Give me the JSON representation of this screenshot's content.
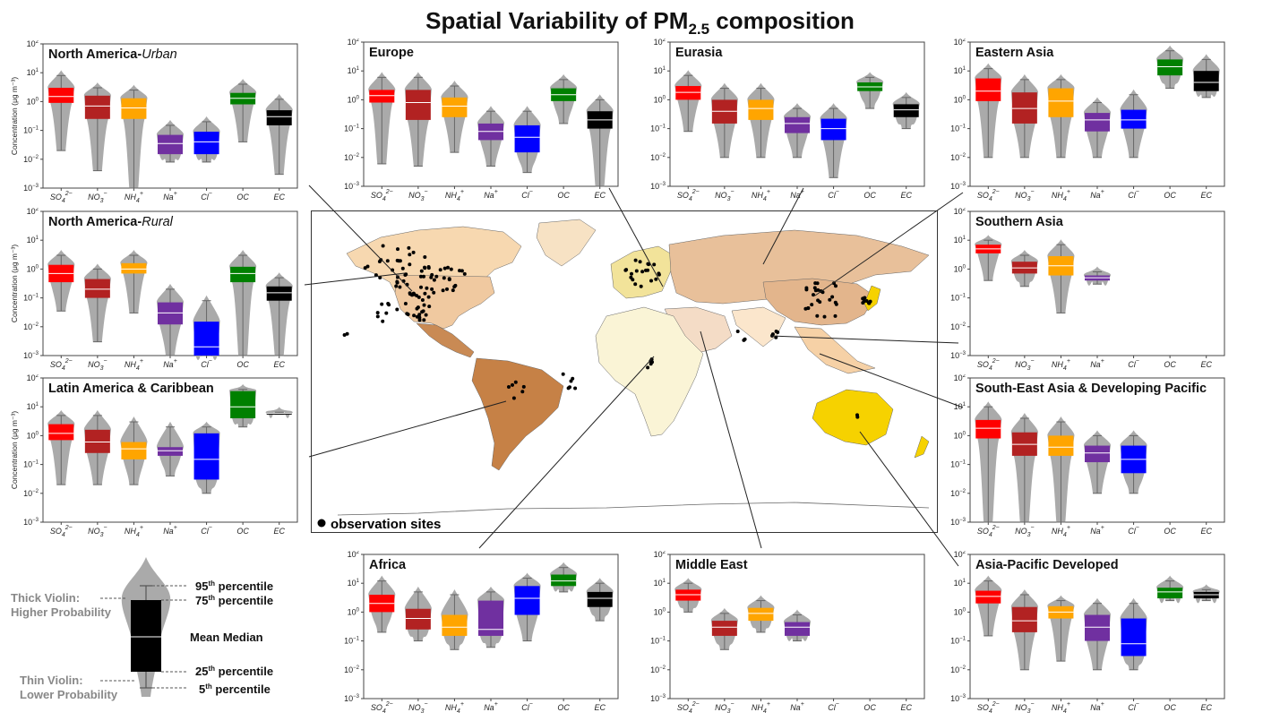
{
  "title": "Spatial Variability of PM",
  "title_sub": "2.5",
  "title_suffix": " composition",
  "map": {
    "legend_label": "observation sites"
  },
  "key": {
    "thick_violin": "Thick Violin:",
    "higher_probability": "Higher Probability",
    "thin_violin": "Thin Violin:",
    "lower_probability": "Lower Probability",
    "p95": "95",
    "p75": "75",
    "p25": "25",
    "p5": "5",
    "th": "th",
    "percentile": "percentile",
    "mean_median": "Mean Median"
  },
  "colors": {
    "SO4": "#ff0000",
    "NO3": "#b22222",
    "NH4": "#ffa500",
    "Na": "#7030a0",
    "Cl": "#0000ff",
    "OC": "#008000",
    "EC": "#000000",
    "violin": "#aaaaaa"
  },
  "chart_data": [
    {
      "type": "box-violin",
      "title": "North America-",
      "title_italic": "Urban",
      "ylabel": "Concentration (μg m⁻³)",
      "yscale": "log",
      "ylim": [
        0.001,
        100
      ],
      "categories": [
        "SO4",
        "NO3",
        "NH4",
        "Na",
        "Cl",
        "OC",
        "EC"
      ],
      "boxes": [
        {
          "p5": 0.02,
          "q1": 0.9,
          "median": 1.5,
          "q3": 3.0,
          "p95": 8
        },
        {
          "p5": 0.004,
          "q1": 0.25,
          "median": 0.7,
          "q3": 1.6,
          "p95": 3
        },
        {
          "p5": 0.001,
          "q1": 0.25,
          "median": 0.6,
          "q3": 1.3,
          "p95": 2.5
        },
        {
          "p5": 0.008,
          "q1": 0.015,
          "median": 0.035,
          "q3": 0.07,
          "p95": 0.15
        },
        {
          "p5": 0.008,
          "q1": 0.015,
          "median": 0.04,
          "q3": 0.09,
          "p95": 0.2
        },
        {
          "p5": 0.04,
          "q1": 0.8,
          "median": 1.3,
          "q3": 2.0,
          "p95": 4
        },
        {
          "p5": 0.003,
          "q1": 0.15,
          "median": 0.3,
          "q3": 0.5,
          "p95": 1.2
        }
      ]
    },
    {
      "type": "box-violin",
      "title": "Europe",
      "yscale": "log",
      "ylim": [
        0.001,
        100
      ],
      "categories": [
        "SO4",
        "NO3",
        "NH4",
        "Na",
        "Cl",
        "OC",
        "EC"
      ],
      "boxes": [
        {
          "p5": 0.006,
          "q1": 0.8,
          "median": 1.4,
          "q3": 2.2,
          "p95": 6
        },
        {
          "p5": 0.005,
          "q1": 0.2,
          "median": 0.8,
          "q3": 2.2,
          "p95": 6
        },
        {
          "p5": 0.015,
          "q1": 0.25,
          "median": 0.6,
          "q3": 1.2,
          "p95": 3
        },
        {
          "p5": 0.005,
          "q1": 0.04,
          "median": 0.08,
          "q3": 0.15,
          "p95": 0.4
        },
        {
          "p5": 0.003,
          "q1": 0.015,
          "median": 0.05,
          "q3": 0.13,
          "p95": 0.4
        },
        {
          "p5": 0.15,
          "q1": 0.9,
          "median": 1.5,
          "q3": 2.5,
          "p95": 5
        },
        {
          "p5": 0.001,
          "q1": 0.1,
          "median": 0.2,
          "q3": 0.4,
          "p95": 1
        }
      ]
    },
    {
      "type": "box-violin",
      "title": "Eurasia",
      "yscale": "log",
      "ylim": [
        0.001,
        100
      ],
      "categories": [
        "SO4",
        "NO3",
        "NH4",
        "Na",
        "Cl",
        "OC",
        "EC"
      ],
      "boxes": [
        {
          "p5": 0.08,
          "q1": 1.0,
          "median": 1.8,
          "q3": 3.0,
          "p95": 7
        },
        {
          "p5": 0.01,
          "q1": 0.15,
          "median": 0.4,
          "q3": 1.0,
          "p95": 2.5
        },
        {
          "p5": 0.01,
          "q1": 0.2,
          "median": 0.5,
          "q3": 1.0,
          "p95": 2.5
        },
        {
          "p5": 0.01,
          "q1": 0.07,
          "median": 0.15,
          "q3": 0.25,
          "p95": 0.5
        },
        {
          "p5": 0.002,
          "q1": 0.04,
          "median": 0.1,
          "q3": 0.22,
          "p95": 0.5
        },
        {
          "p5": 0.5,
          "q1": 2.0,
          "median": 2.8,
          "q3": 4.0,
          "p95": 6
        },
        {
          "p5": 0.1,
          "q1": 0.25,
          "median": 0.45,
          "q3": 0.7,
          "p95": 1.2
        }
      ]
    },
    {
      "type": "box-violin",
      "title": "Eastern Asia",
      "yscale": "log",
      "ylim": [
        0.001,
        100
      ],
      "categories": [
        "SO4",
        "NO3",
        "NH4",
        "Na",
        "Cl",
        "OC",
        "EC"
      ],
      "boxes": [
        {
          "p5": 0.01,
          "q1": 0.9,
          "median": 2.0,
          "q3": 5.5,
          "p95": 12
        },
        {
          "p5": 0.01,
          "q1": 0.15,
          "median": 0.5,
          "q3": 1.8,
          "p95": 5
        },
        {
          "p5": 0.01,
          "q1": 0.25,
          "median": 0.9,
          "q3": 2.5,
          "p95": 5
        },
        {
          "p5": 0.01,
          "q1": 0.08,
          "median": 0.2,
          "q3": 0.35,
          "p95": 0.8
        },
        {
          "p5": 0.01,
          "q1": 0.1,
          "median": 0.2,
          "q3": 0.45,
          "p95": 1.5
        },
        {
          "p5": 2.5,
          "q1": 7.0,
          "median": 14,
          "q3": 25,
          "p95": 50
        },
        {
          "p5": 1.2,
          "q1": 2.0,
          "median": 4.0,
          "q3": 10,
          "p95": 25
        }
      ]
    },
    {
      "type": "box-violin",
      "title": "North America-",
      "title_italic": "Rural",
      "ylabel": "Concentration (μg m⁻³)",
      "yscale": "log",
      "ylim": [
        0.001,
        100
      ],
      "categories": [
        "SO4",
        "NO3",
        "NH4",
        "Na",
        "Cl",
        "OC",
        "EC"
      ],
      "boxes": [
        {
          "p5": 0.035,
          "q1": 0.35,
          "median": 0.7,
          "q3": 1.4,
          "p95": 3
        },
        {
          "p5": 0.003,
          "q1": 0.1,
          "median": 0.2,
          "q3": 0.45,
          "p95": 1
        },
        {
          "p5": 0.03,
          "q1": 0.7,
          "median": 1.0,
          "q3": 1.6,
          "p95": 3
        },
        {
          "p5": 0.001,
          "q1": 0.012,
          "median": 0.03,
          "q3": 0.07,
          "p95": 0.2
        },
        {
          "p5": 0.001,
          "q1": 0.001,
          "median": 0.002,
          "q3": 0.015,
          "p95": 0.08
        },
        {
          "p5": 0.001,
          "q1": 0.35,
          "median": 0.7,
          "q3": 1.2,
          "p95": 3
        },
        {
          "p5": 0.001,
          "q1": 0.08,
          "median": 0.15,
          "q3": 0.25,
          "p95": 0.5
        }
      ]
    },
    {
      "type": "box-violin",
      "title": "Southern Asia",
      "yscale": "log",
      "ylim": [
        0.001,
        100
      ],
      "categories": [
        "SO4",
        "NO3",
        "NH4",
        "Na",
        "Cl",
        "OC",
        "EC"
      ],
      "boxes": [
        {
          "p5": 0.4,
          "q1": 3.5,
          "median": 5.0,
          "q3": 7.0,
          "p95": 10
        },
        {
          "p5": 0.25,
          "q1": 0.7,
          "median": 1.1,
          "q3": 1.8,
          "p95": 3
        },
        {
          "p5": 0.03,
          "q1": 0.6,
          "median": 1.3,
          "q3": 2.8,
          "p95": 7
        },
        {
          "p5": 0.3,
          "q1": 0.4,
          "median": 0.5,
          "q3": 0.6,
          "p95": 0.8
        },
        null,
        null,
        null
      ]
    },
    {
      "type": "box-violin",
      "title": "Latin America & Caribbean",
      "ylabel": "Concentration (μg m⁻³)",
      "yscale": "log",
      "ylim": [
        0.001,
        100
      ],
      "categories": [
        "SO4",
        "NO3",
        "NH4",
        "Na",
        "Cl",
        "OC",
        "EC"
      ],
      "boxes": [
        {
          "p5": 0.02,
          "q1": 0.7,
          "median": 1.2,
          "q3": 2.5,
          "p95": 5
        },
        {
          "p5": 0.02,
          "q1": 0.25,
          "median": 0.6,
          "q3": 1.6,
          "p95": 5
        },
        {
          "p5": 0.02,
          "q1": 0.15,
          "median": 0.35,
          "q3": 0.6,
          "p95": 3
        },
        {
          "p5": 0.04,
          "q1": 0.2,
          "median": 0.3,
          "q3": 0.4,
          "p95": 2
        },
        {
          "p5": 0.01,
          "q1": 0.03,
          "median": 0.15,
          "q3": 1.2,
          "p95": 2
        },
        {
          "p5": 2.0,
          "q1": 4.0,
          "median": 10,
          "q3": 35,
          "p95": 40
        },
        {
          "p5": 5.5,
          "q1": 5.8,
          "median": 6.0,
          "q3": 6.2,
          "p95": 6.5
        }
      ]
    },
    {
      "type": "box-violin",
      "title": "South-East Asia & Developing Pacific",
      "yscale": "log",
      "ylim": [
        0.001,
        100
      ],
      "categories": [
        "SO4",
        "NO3",
        "NH4",
        "Na",
        "Cl",
        "OC",
        "EC"
      ],
      "boxes": [
        {
          "p5": 0.001,
          "q1": 0.8,
          "median": 1.8,
          "q3": 3.5,
          "p95": 10
        },
        {
          "p5": 0.001,
          "q1": 0.2,
          "median": 0.5,
          "q3": 1.3,
          "p95": 4
        },
        {
          "p5": 0.001,
          "q1": 0.2,
          "median": 0.4,
          "q3": 1.0,
          "p95": 3
        },
        {
          "p5": 0.01,
          "q1": 0.12,
          "median": 0.25,
          "q3": 0.45,
          "p95": 1
        },
        {
          "p5": 0.01,
          "q1": 0.05,
          "median": 0.15,
          "q3": 0.45,
          "p95": 1
        },
        null,
        null
      ]
    },
    {
      "type": "box-violin",
      "title": "Africa",
      "yscale": "log",
      "ylim": [
        0.001,
        100
      ],
      "categories": [
        "SO4",
        "NO3",
        "NH4",
        "Na",
        "Cl",
        "OC",
        "EC"
      ],
      "boxes": [
        {
          "p5": 0.2,
          "q1": 1.0,
          "median": 2.0,
          "q3": 4.0,
          "p95": 12
        },
        {
          "p5": 0.1,
          "q1": 0.25,
          "median": 0.6,
          "q3": 1.3,
          "p95": 5
        },
        {
          "p5": 0.05,
          "q1": 0.15,
          "median": 0.3,
          "q3": 0.8,
          "p95": 4
        },
        {
          "p5": 0.06,
          "q1": 0.15,
          "median": 0.25,
          "q3": 2.5,
          "p95": 5
        },
        {
          "p5": 0.1,
          "q1": 0.8,
          "median": 3.0,
          "q3": 8.0,
          "p95": 15
        },
        {
          "p5": 5.0,
          "q1": 8.0,
          "median": 12,
          "q3": 20,
          "p95": 35
        },
        {
          "p5": 0.5,
          "q1": 1.5,
          "median": 3.0,
          "q3": 5.0,
          "p95": 10
        }
      ]
    },
    {
      "type": "box-violin",
      "title": "Middle East",
      "yscale": "log",
      "ylim": [
        0.001,
        100
      ],
      "categories": [
        "SO4",
        "NO3",
        "NH4",
        "Na",
        "Cl",
        "OC",
        "EC"
      ],
      "boxes": [
        {
          "p5": 1.0,
          "q1": 2.5,
          "median": 4.0,
          "q3": 6.0,
          "p95": 10
        },
        {
          "p5": 0.05,
          "q1": 0.15,
          "median": 0.3,
          "q3": 0.5,
          "p95": 0.9
        },
        {
          "p5": 0.2,
          "q1": 0.5,
          "median": 0.9,
          "q3": 1.4,
          "p95": 2.5
        },
        {
          "p5": 0.1,
          "q1": 0.15,
          "median": 0.3,
          "q3": 0.45,
          "p95": 0.8
        },
        null,
        null,
        null
      ]
    },
    {
      "type": "box-violin",
      "title": "Asia-Pacific Developed",
      "yscale": "log",
      "ylim": [
        0.001,
        100
      ],
      "categories": [
        "SO4",
        "NO3",
        "NH4",
        "Na",
        "Cl",
        "OC",
        "EC"
      ],
      "boxes": [
        {
          "p5": 0.15,
          "q1": 2.0,
          "median": 3.5,
          "q3": 5.5,
          "p95": 12
        },
        {
          "p5": 0.01,
          "q1": 0.2,
          "median": 0.5,
          "q3": 1.5,
          "p95": 4
        },
        {
          "p5": 0.02,
          "q1": 0.6,
          "median": 1.0,
          "q3": 1.6,
          "p95": 2.5
        },
        {
          "p5": 0.01,
          "q1": 0.1,
          "median": 0.3,
          "q3": 0.8,
          "p95": 2
        },
        {
          "p5": 0.01,
          "q1": 0.03,
          "median": 0.08,
          "q3": 0.6,
          "p95": 2
        },
        {
          "p5": 2.5,
          "q1": 3.0,
          "median": 5.0,
          "q3": 7.0,
          "p95": 12
        },
        {
          "p5": 2.5,
          "q1": 3.0,
          "median": 4.0,
          "q3": 5.0,
          "p95": 6
        }
      ]
    }
  ]
}
